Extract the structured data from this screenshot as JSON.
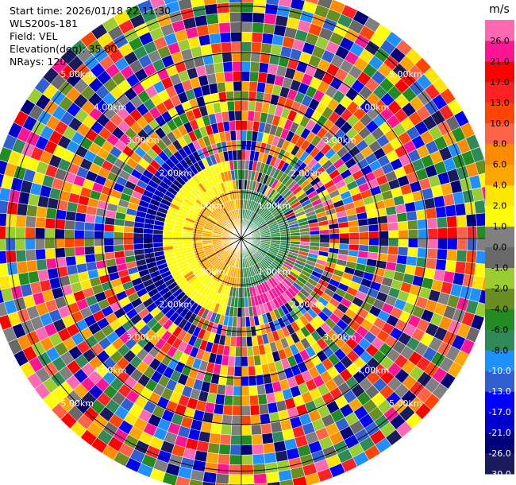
{
  "header": {
    "start_time": "Start time: 2026/01/18 22:11:30",
    "site": "WLS200s-181",
    "field": "Field: VEL",
    "elevation": "Elevation(deg): 35.00",
    "nrays": "NRays: 120"
  },
  "chart_data": {
    "type": "ppi-radial-velocity",
    "field": "VEL",
    "unit": "m/s",
    "elevation_deg": 35.0,
    "n_rays": 120,
    "range_rings_km": [
      1.0,
      2.0,
      3.0,
      4.0,
      5.0
    ],
    "ring_labels": [
      "1.00km",
      "2.00km",
      "3.00km",
      "4.00km",
      "5.00km"
    ],
    "max_range_km": 5.5,
    "colorbar": {
      "unit": "m/s",
      "levels": [
        -30.0,
        -26.0,
        -21.0,
        -17.0,
        -13.0,
        -10.0,
        -8.0,
        -6.0,
        -4.0,
        -2.0,
        -1.0,
        0.0,
        1.0,
        2.0,
        4.0,
        6.0,
        8.0,
        10.0,
        13.0,
        17.0,
        21.0,
        26.0
      ],
      "tick_labels": [
        "-30.0",
        "-26.0",
        "-21.0",
        "-17.0",
        "-13.0",
        "-10.0",
        "-8.0",
        "-6.0",
        "-4.0",
        "-2.0",
        "-1.0",
        "0.0",
        "1.0",
        "2.0",
        "4.0",
        "6.0",
        "8.0",
        "10.0",
        "13.0",
        "17.0",
        "21.0",
        "26.0"
      ],
      "colors": [
        "#1a1a5e",
        "#00007a",
        "#0000cc",
        "#0000ff",
        "#2f5fd0",
        "#1e90ff",
        "#2e8b57",
        "#228b22",
        "#6b8e23",
        "#9acd32",
        "#696969",
        "#808080",
        "#ffff00",
        "#ffe600",
        "#ffa500",
        "#ff8c00",
        "#ff6347",
        "#ff4500",
        "#ff2222",
        "#ff0000",
        "#ff1493",
        "#ff69b4"
      ]
    },
    "near_field": {
      "west_sector_color": "#ffa500",
      "east_sector_color": "#2e8b57",
      "southeast_patch_color": "#ff1493"
    }
  }
}
